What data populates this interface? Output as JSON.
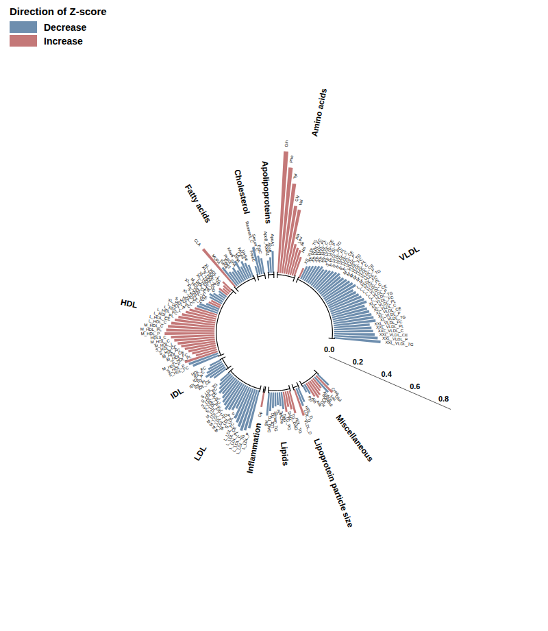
{
  "chart_data": {
    "type": "radial_bar",
    "legend_title": "Direction of Z-score",
    "legend": "top-left",
    "series": [
      {
        "name": "Decrease",
        "color": "#6e8eae"
      },
      {
        "name": "Increase",
        "color": "#c47878"
      }
    ],
    "ylim": [
      0,
      0.85
    ],
    "yticks": [
      {
        "value": 0,
        "label": "0.0"
      },
      0.2,
      0.4,
      0.6,
      0.8
    ],
    "groups": [
      {
        "name": "VLDL",
        "categories": [
          "XXL_VLDL_TG",
          "XXL_VLDL_P",
          "XXL_VLDL_CE",
          "XXL_VLDL_C",
          "XXL_VLDL_PL",
          "XXL_VLDL_FC",
          "XL_VLDL_TG",
          "XL_VLDL_P",
          "XL_VLDL_CE",
          "XL_VLDL_C",
          "XL_VLDL_PL",
          "XL_VLDL_FC",
          "L_VLDL_TG",
          "L_VLDL_P",
          "L_VLDL_CE",
          "L_VLDL_C",
          "L_VLDL_PL",
          "L_VLDL_FC",
          "M_VLDL_TG",
          "M_VLDL_P",
          "M_VLDL_CE",
          "M_VLDL_C",
          "M_VLDL_PL",
          "M_VLDL_FC",
          "S_VLDL_TG",
          "S_VLDL_P",
          "S_VLDL_CE",
          "S_VLDL_C",
          "S_VLDL_PL",
          "S_VLDL_FC",
          "XS_VLDL_TG",
          "XS_VLDL_P",
          "XS_VLDL_CE",
          "XS_VLDL_C",
          "XS_VLDL_PL",
          "XS_VLDL_FC",
          "XS_VLDL_TG"
        ],
        "values": [
          0.3,
          0.28,
          0.26,
          0.25,
          0.24,
          0.23,
          0.27,
          0.26,
          0.25,
          0.24,
          0.23,
          0.22,
          0.24,
          0.23,
          0.22,
          0.21,
          0.2,
          0.19,
          0.22,
          0.21,
          0.2,
          0.19,
          0.18,
          0.17,
          0.18,
          0.17,
          0.16,
          0.15,
          0.14,
          0.13,
          0.14,
          0.13,
          0.12,
          0.11,
          0.1,
          0.09,
          0.07
        ],
        "direction": [
          "Decrease",
          "Decrease",
          "Decrease",
          "Decrease",
          "Decrease",
          "Decrease",
          "Decrease",
          "Decrease",
          "Decrease",
          "Decrease",
          "Decrease",
          "Decrease",
          "Decrease",
          "Decrease",
          "Decrease",
          "Decrease",
          "Decrease",
          "Decrease",
          "Decrease",
          "Decrease",
          "Decrease",
          "Decrease",
          "Decrease",
          "Decrease",
          "Decrease",
          "Decrease",
          "Decrease",
          "Decrease",
          "Decrease",
          "Decrease",
          "Decrease",
          "Decrease",
          "Decrease",
          "Decrease",
          "Decrease",
          "Decrease",
          "Increase"
        ]
      },
      {
        "name": "Amino acids",
        "categories": [
          "His",
          "Ile",
          "Leu",
          "Ala",
          "Val",
          "Gly",
          "Tyr",
          "Phe",
          "Gln"
        ],
        "values": [
          0.13,
          0.17,
          0.18,
          0.2,
          0.42,
          0.44,
          0.58,
          0.68,
          0.78
        ],
        "direction": [
          "Increase",
          "Increase",
          "Increase",
          "Increase",
          "Increase",
          "Increase",
          "Increase",
          "Increase",
          "Increase"
        ]
      },
      {
        "name": "Apolipoproteins",
        "categories": [
          "ApoA1",
          "ApoB",
          "ApoB_ApoA1"
        ],
        "values": [
          0.14,
          0.1,
          0.08
        ],
        "direction": [
          "Decrease",
          "Decrease",
          "Decrease"
        ]
      },
      {
        "name": "Cholesterol",
        "categories": [
          "EstC",
          "Serum_C",
          "Remnant_C",
          "FreeC"
        ],
        "values": [
          0.1,
          0.12,
          0.18,
          0.06
        ],
        "direction": [
          "Decrease",
          "Decrease",
          "Decrease",
          "Decrease"
        ]
      },
      {
        "name": "Fatty acids",
        "categories": [
          "UnSat",
          "FALen",
          "LA",
          "DHA",
          "FAw6",
          "SFA",
          "PUFA",
          "FAw3",
          "TotFA",
          "MUFA",
          "CLA"
        ],
        "values": [
          0.08,
          0.1,
          0.12,
          0.09,
          0.14,
          0.08,
          0.11,
          0.09,
          0.1,
          0.15,
          0.32
        ],
        "direction": [
          "Decrease",
          "Decrease",
          "Decrease",
          "Decrease",
          "Decrease",
          "Decrease",
          "Decrease",
          "Decrease",
          "Decrease",
          "Decrease",
          "Increase"
        ]
      },
      {
        "name": "HDL",
        "categories": [
          "XL_HDL_L",
          "XL_HDL_TG",
          "S_HDL_TG",
          "XL_HDL_P",
          "XL_HDL_PL",
          "L_HDL_TG",
          "M_HDL_TG",
          "XL_HDL_CE",
          "XL_HDL_C",
          "S_HDL_CE",
          "XL_HDL_TG",
          "HDL2_C",
          "HDL_C",
          "S_HDL_C",
          "XL_HDL_FC",
          "L_HDL_P",
          "L_HDL_L",
          "L_HDL_FC",
          "L_HDL_PL",
          "L_HDL_CE",
          "L_HDL_C",
          "M_HDL_C",
          "M_HDL_PL",
          "M_HDL_P",
          "HDL3_C",
          "M_HDL_C",
          "M_HDL_L",
          "S_HDL_CE",
          "S_HDL_FC",
          "M_HDL_CE",
          "M_HDL_FC",
          "S_HDL_PL",
          "M_HDL_P",
          "S_HDL_P",
          "S_HDL_FC"
        ],
        "values": [
          0.08,
          0.06,
          0.05,
          0.07,
          0.06,
          0.05,
          0.08,
          0.1,
          0.09,
          0.07,
          0.08,
          0.09,
          0.13,
          0.14,
          0.15,
          0.18,
          0.2,
          0.22,
          0.24,
          0.26,
          0.28,
          0.3,
          0.31,
          0.32,
          0.28,
          0.26,
          0.24,
          0.22,
          0.2,
          0.18,
          0.16,
          0.14,
          0.22,
          0.2,
          0.18
        ],
        "direction": [
          "Increase",
          "Increase",
          "Increase",
          "Increase",
          "Decrease",
          "Decrease",
          "Decrease",
          "Decrease",
          "Decrease",
          "Increase",
          "Increase",
          "Decrease",
          "Decrease",
          "Decrease",
          "Increase",
          "Increase",
          "Increase",
          "Increase",
          "Increase",
          "Increase",
          "Increase",
          "Increase",
          "Increase",
          "Increase",
          "Increase",
          "Increase",
          "Increase",
          "Increase",
          "Increase",
          "Increase",
          "Increase",
          "Increase",
          "Increase",
          "Decrease",
          "Decrease"
        ]
      },
      {
        "name": "IDL",
        "categories": [
          "HDL_FC",
          "IDL_C",
          "IDL_P",
          "IDL_TG",
          "IDL_PL",
          "IDL_CE"
        ],
        "values": [
          0.08,
          0.1,
          0.12,
          0.14,
          0.12,
          0.1
        ],
        "direction": [
          "Decrease",
          "Decrease",
          "Decrease",
          "Decrease",
          "Decrease",
          "Decrease"
        ]
      },
      {
        "name": "LDL",
        "categories": [
          "S_LDL_TG",
          "S_LDL_FC",
          "S_LDL_CE",
          "S_LDL_C",
          "S_LDL_PL",
          "M_LDL_FC",
          "M_LDL_CE",
          "M_LDL_PL",
          "M_LDL_C",
          "M_LDL_TG",
          "M_LDL_P",
          "S_LDL_P",
          "L_LDL_FC",
          "L_LDL_CE",
          "L_LDL_PL",
          "L_LDL_C",
          "L_LDL_TG",
          "L_LDL_P"
        ],
        "values": [
          0.08,
          0.1,
          0.12,
          0.14,
          0.13,
          0.15,
          0.17,
          0.18,
          0.2,
          0.19,
          0.18,
          0.16,
          0.22,
          0.24,
          0.26,
          0.28,
          0.27,
          0.25
        ],
        "direction": [
          "Decrease",
          "Decrease",
          "Decrease",
          "Decrease",
          "Decrease",
          "Decrease",
          "Decrease",
          "Decrease",
          "Decrease",
          "Decrease",
          "Decrease",
          "Decrease",
          "Decrease",
          "Decrease",
          "Decrease",
          "Decrease",
          "Decrease",
          "Decrease"
        ]
      },
      {
        "name": "Inflammation",
        "categories": [
          "Gp"
        ],
        "values": [
          0.1
        ],
        "direction": [
          "Increase"
        ]
      },
      {
        "name": "Lipids",
        "categories": [
          "SM",
          "DAG_TG",
          "LDL_TG",
          "Serum_TG",
          "PC",
          "TotCho",
          "TotG",
          "TG_PG",
          "DAG",
          "TG_DAG",
          "HDL_TG"
        ],
        "values": [
          0.15,
          0.12,
          0.1,
          0.09,
          0.08,
          0.09,
          0.11,
          0.13,
          0.1,
          0.12,
          0.15
        ],
        "direction": [
          "Decrease",
          "Decrease",
          "Decrease",
          "Decrease",
          "Decrease",
          "Decrease",
          "Decrease",
          "Increase",
          "Increase",
          "Increase",
          "Increase"
        ]
      },
      {
        "name": "Lipoprotein particle size",
        "categories": [
          "VLDL_D",
          "LDL_D",
          "HDL_D"
        ],
        "values": [
          0.18,
          0.12,
          0.1
        ],
        "direction": [
          "Increase",
          "Decrease",
          "Decrease"
        ]
      },
      {
        "name": "Miscellaneous",
        "categories": [
          "Pyr",
          "Alb",
          "Ace",
          "Glc",
          "Cit",
          "bOHBut",
          "AcAce",
          "Lac",
          "Glol",
          "Crea"
        ],
        "values": [
          0.05,
          0.07,
          0.1,
          0.12,
          0.11,
          0.09,
          0.08,
          0.13,
          0.15,
          0.1
        ],
        "direction": [
          "Decrease",
          "Decrease",
          "Increase",
          "Increase",
          "Increase",
          "Increase",
          "Increase",
          "Decrease",
          "Increase",
          "Decrease"
        ]
      }
    ]
  }
}
